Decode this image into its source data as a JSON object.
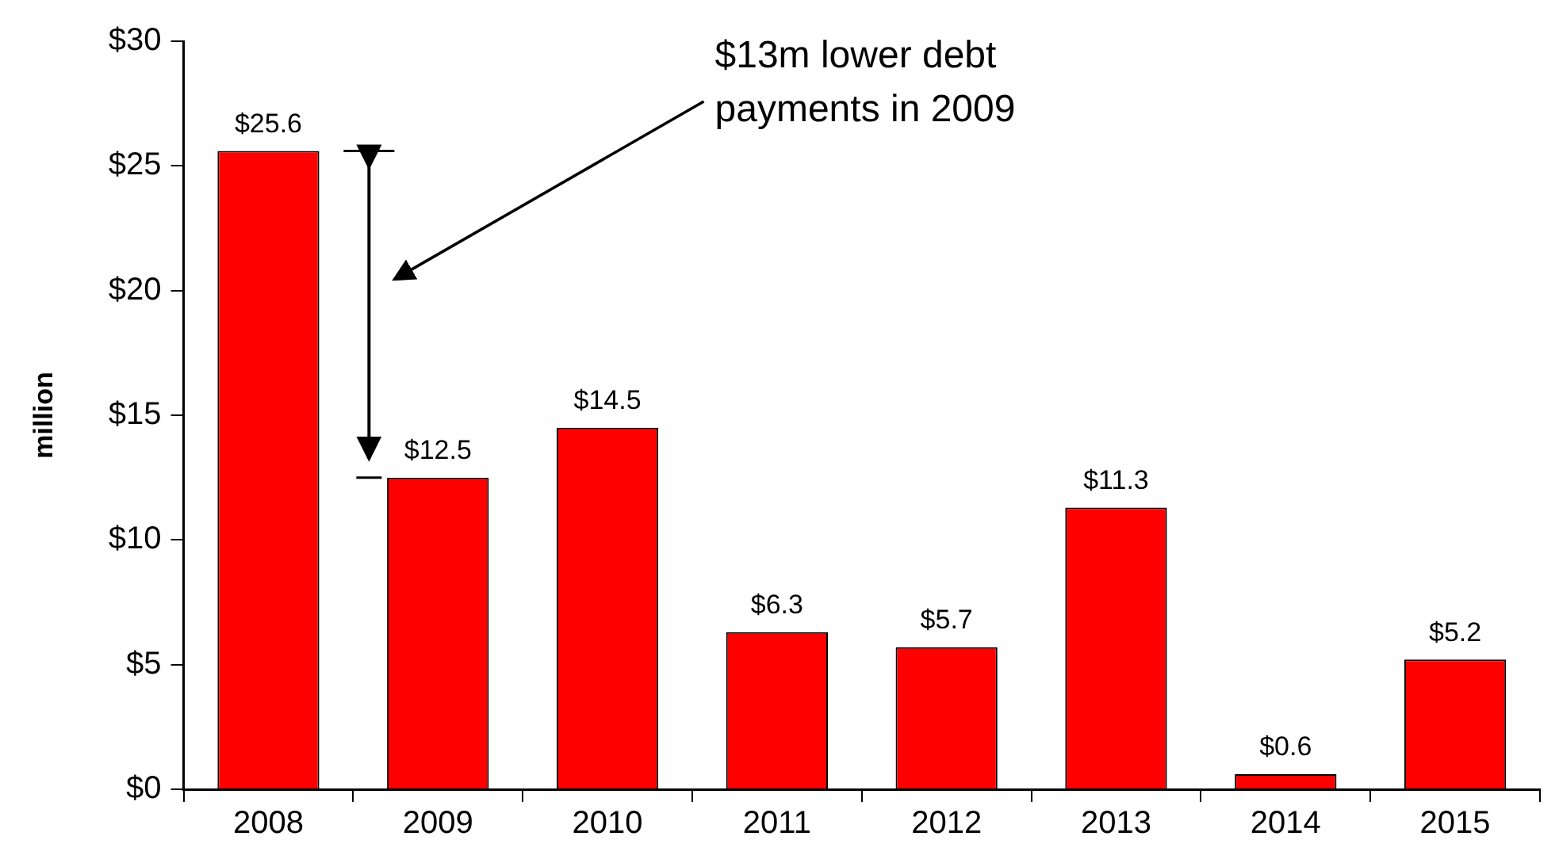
{
  "chart_data": {
    "type": "bar",
    "categories": [
      "2008",
      "2009",
      "2010",
      "2011",
      "2012",
      "2013",
      "2014",
      "2015"
    ],
    "values": [
      25.6,
      12.5,
      14.5,
      6.3,
      5.7,
      11.3,
      0.6,
      5.2
    ],
    "value_labels": [
      "$25.6",
      "$12.5",
      "$14.5",
      "$6.3",
      "$5.7",
      "$11.3",
      "$0.6",
      "$5.2"
    ],
    "color": "#ff0000",
    "ylabel": "million",
    "ylim": [
      0,
      30
    ],
    "yticks": [
      {
        "value": 0,
        "label": "$0"
      },
      {
        "value": 5,
        "label": "$5"
      },
      {
        "value": 10,
        "label": "$10"
      },
      {
        "value": 15,
        "label": "$15"
      },
      {
        "value": 20,
        "label": "$20"
      },
      {
        "value": 25,
        "label": "$25"
      },
      {
        "value": 30,
        "label": "$30"
      }
    ],
    "grid": false,
    "legend": false,
    "annotations": [
      "$13m lower debt\npayments in 2009"
    ]
  }
}
